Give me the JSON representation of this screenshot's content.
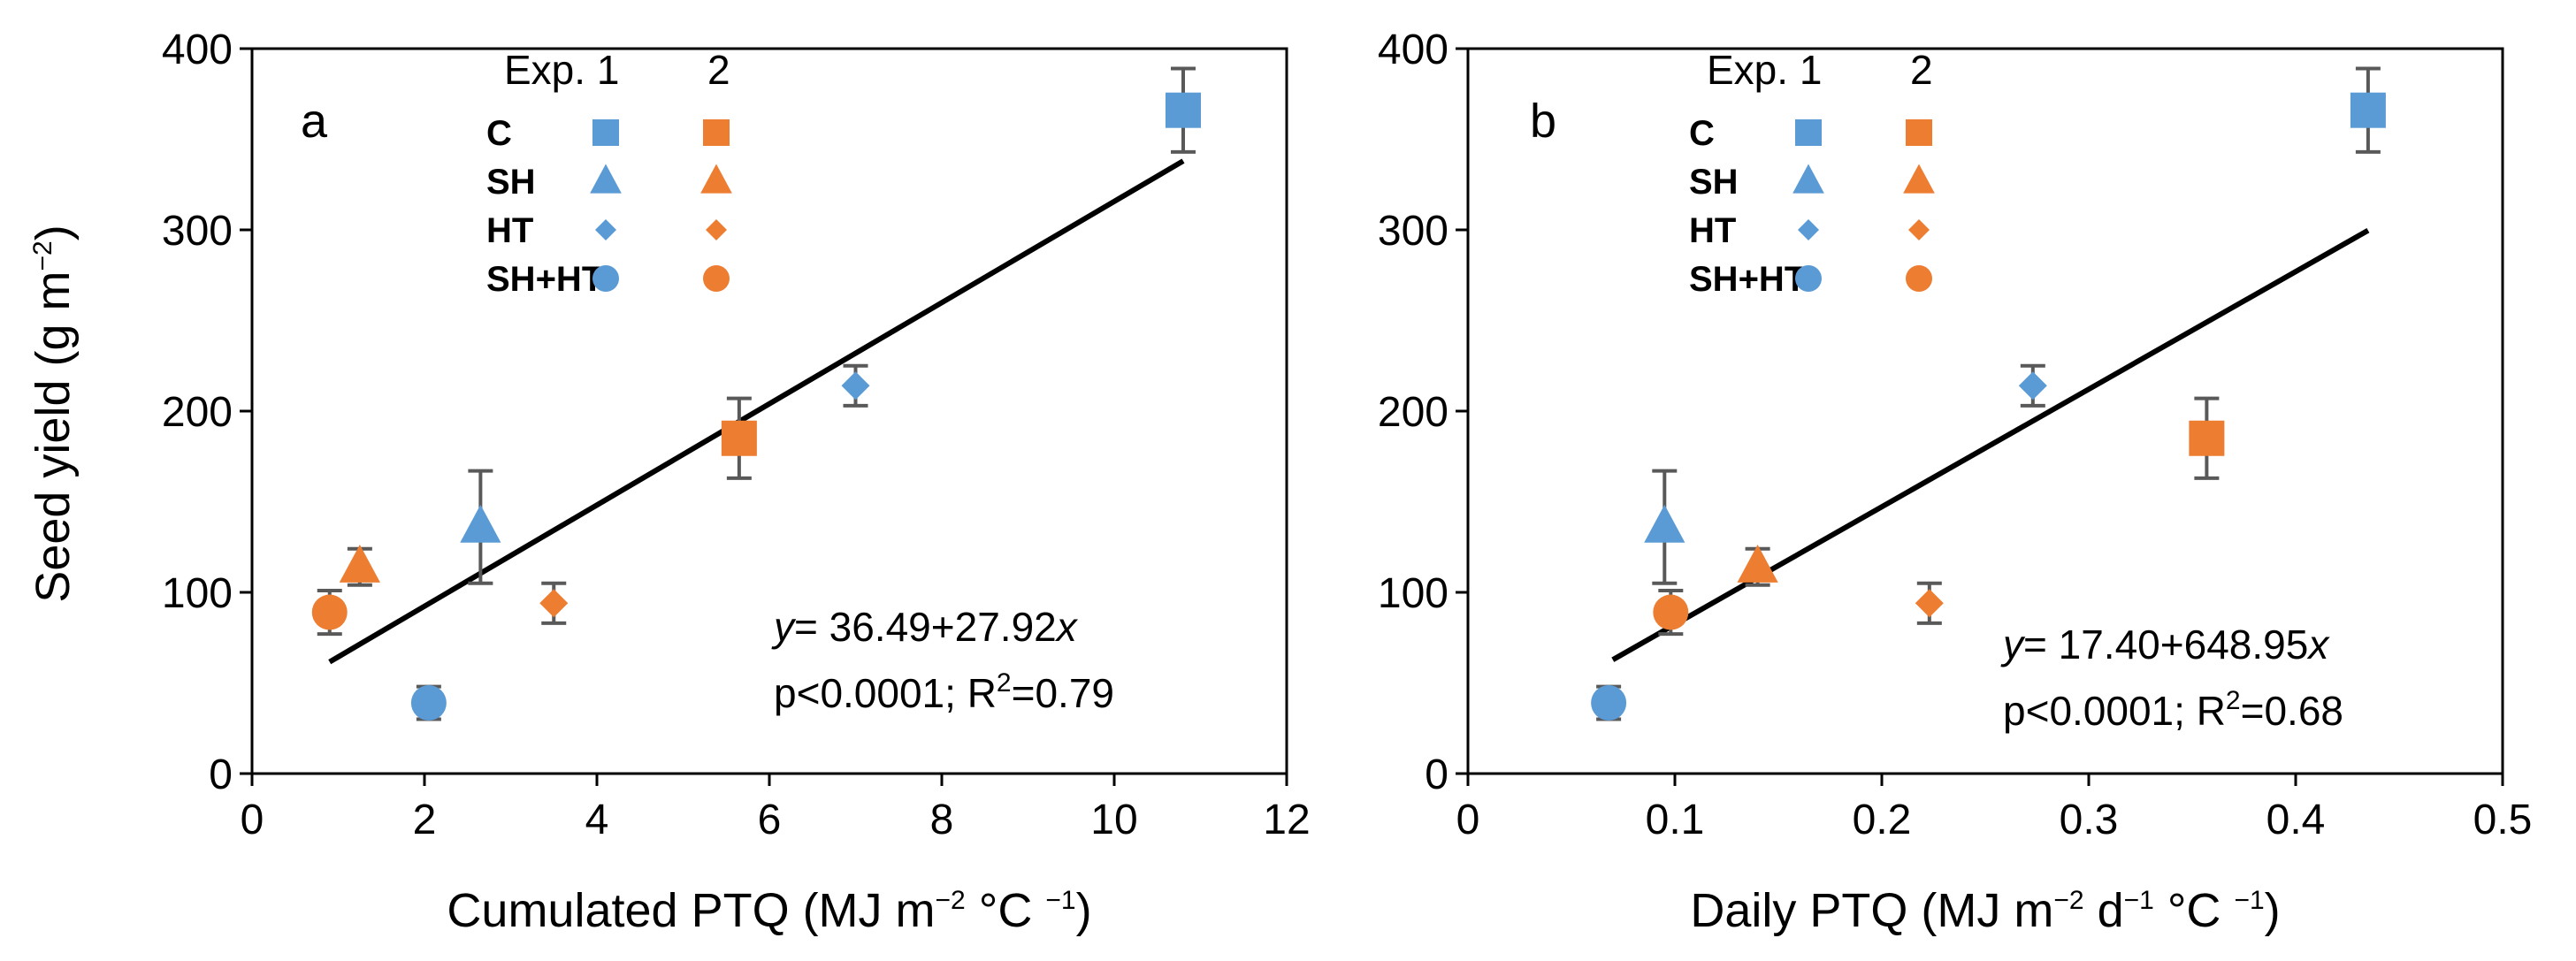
{
  "figure": {
    "ylabel": "Seed yield (g m",
    "ylabel_sup": "−2",
    "ylabel_end": ")",
    "legend_header_exp": "Exp. 1",
    "legend_header_2": "2"
  },
  "colors": {
    "exp1": "#5B9BD5",
    "exp2": "#ED7D31",
    "line": "#000000",
    "errorbar": "#595959"
  },
  "chart_data": [
    {
      "type": "scatter",
      "panel_label": "a",
      "xlabel_parts": [
        "Cumulated PTQ (MJ m",
        "−2",
        " °C ",
        "−1",
        ")"
      ],
      "ylabel": "Seed yield (g m−2)",
      "xlim": [
        0,
        12
      ],
      "ylim": [
        0,
        400
      ],
      "xticks": [
        0,
        2,
        4,
        6,
        8,
        10,
        12
      ],
      "xtick_labels": [
        "0",
        "2",
        "4",
        "6",
        "8",
        "10",
        "12"
      ],
      "yticks": [
        0,
        100,
        200,
        300,
        400
      ],
      "ytick_labels": [
        "0",
        "100",
        "200",
        "300",
        "400"
      ],
      "legend_labels": [
        "C",
        "SH",
        "HT",
        "SH+HT"
      ],
      "series": [
        {
          "name": "Exp. 1",
          "points": [
            {
              "treatment": "C",
              "marker": "square",
              "x": 10.8,
              "y": 366,
              "err": 23
            },
            {
              "treatment": "SH",
              "marker": "triangle",
              "x": 2.65,
              "y": 136,
              "err": 31
            },
            {
              "treatment": "HT",
              "marker": "diamond",
              "x": 7.0,
              "y": 214,
              "err": 11
            },
            {
              "treatment": "SH+HT",
              "marker": "circle",
              "x": 2.05,
              "y": 39,
              "err": 9
            }
          ]
        },
        {
          "name": "Exp. 2",
          "points": [
            {
              "treatment": "C",
              "marker": "square",
              "x": 5.65,
              "y": 185,
              "err": 22
            },
            {
              "treatment": "SH",
              "marker": "triangle",
              "x": 1.25,
              "y": 114,
              "err": 10
            },
            {
              "treatment": "HT",
              "marker": "diamond",
              "x": 3.5,
              "y": 94,
              "err": 11
            },
            {
              "treatment": "SH+HT",
              "marker": "circle",
              "x": 0.9,
              "y": 89,
              "err": 12
            }
          ]
        }
      ],
      "regression": {
        "intercept": 36.49,
        "slope": 27.92,
        "x_from": 0.9,
        "x_to": 10.8
      },
      "equation_y": "y",
      "equation_rest": "= 36.49+27.92",
      "equation_x": "x",
      "stats_prefix": "p<0.0001; R",
      "stats_sup": "2",
      "stats_suffix": "=0.79"
    },
    {
      "type": "scatter",
      "panel_label": "b",
      "xlabel_parts": [
        "Daily PTQ (MJ m",
        "−2",
        " d",
        "−1",
        " °C ",
        "−1",
        ")"
      ],
      "ylabel": "Seed yield (g m−2)",
      "xlim": [
        0,
        0.5
      ],
      "ylim": [
        0,
        400
      ],
      "xticks": [
        0,
        0.1,
        0.2,
        0.3,
        0.4,
        0.5
      ],
      "xtick_labels": [
        "0",
        "0.1",
        "0.2",
        "0.3",
        "0.4",
        "0.5"
      ],
      "yticks": [
        0,
        100,
        200,
        300,
        400
      ],
      "ytick_labels": [
        "0",
        "100",
        "200",
        "300",
        "400"
      ],
      "legend_labels": [
        "C",
        "SH",
        "HT",
        "SH+HT"
      ],
      "series": [
        {
          "name": "Exp. 1",
          "points": [
            {
              "treatment": "C",
              "marker": "square",
              "x": 0.435,
              "y": 366,
              "err": 23
            },
            {
              "treatment": "SH",
              "marker": "triangle",
              "x": 0.095,
              "y": 136,
              "err": 31
            },
            {
              "treatment": "HT",
              "marker": "diamond",
              "x": 0.273,
              "y": 214,
              "err": 11
            },
            {
              "treatment": "SH+HT",
              "marker": "circle",
              "x": 0.068,
              "y": 39,
              "err": 9
            }
          ]
        },
        {
          "name": "Exp. 2",
          "points": [
            {
              "treatment": "C",
              "marker": "square",
              "x": 0.357,
              "y": 185,
              "err": 22
            },
            {
              "treatment": "SH",
              "marker": "triangle",
              "x": 0.14,
              "y": 114,
              "err": 10
            },
            {
              "treatment": "HT",
              "marker": "diamond",
              "x": 0.223,
              "y": 94,
              "err": 11
            },
            {
              "treatment": "SH+HT",
              "marker": "circle",
              "x": 0.098,
              "y": 89,
              "err": 12
            }
          ]
        }
      ],
      "regression": {
        "intercept": 17.4,
        "slope": 648.95,
        "x_from": 0.07,
        "x_to": 0.435
      },
      "equation_y": "y",
      "equation_rest": "= 17.40+648.95",
      "equation_x": "x",
      "stats_prefix": "p<0.0001; R",
      "stats_sup": "2",
      "stats_suffix": "=0.68"
    }
  ]
}
